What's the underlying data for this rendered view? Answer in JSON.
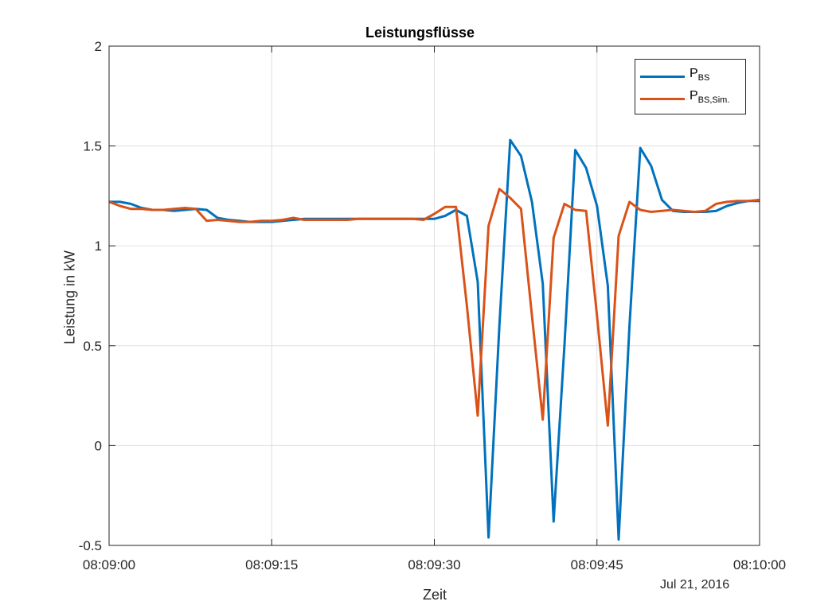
{
  "chart_data": {
    "type": "line",
    "title": "Leistungsflüsse",
    "xlabel": "Zeit",
    "ylabel": "Leistung in kW",
    "date_label": "Jul 21, 2016",
    "xlim": [
      0,
      60
    ],
    "ylim": [
      -0.5,
      2
    ],
    "xticks": [
      0,
      15,
      30,
      45,
      60
    ],
    "xtick_labels": [
      "08:09:00",
      "08:09:15",
      "08:09:30",
      "08:09:45",
      "08:10:00"
    ],
    "yticks": [
      -0.5,
      0,
      0.5,
      1,
      1.5,
      2
    ],
    "ytick_labels": [
      "-0.5",
      "0",
      "0.5",
      "1",
      "1.5",
      "2"
    ],
    "grid": true,
    "legend_position": "top-right",
    "series": [
      {
        "name": "P_BS",
        "legend_main": "P",
        "legend_sub": "BS",
        "color": "#0072BD",
        "x": [
          0,
          1,
          2,
          3,
          4,
          5,
          6,
          7,
          8,
          9,
          10,
          11,
          12,
          13,
          14,
          15,
          16,
          17,
          18,
          19,
          20,
          21,
          22,
          23,
          24,
          25,
          26,
          27,
          28,
          29,
          30,
          31,
          32,
          33,
          34,
          35,
          36,
          37,
          38,
          39,
          40,
          41,
          42,
          43,
          44,
          45,
          46,
          47,
          48,
          49,
          50,
          51,
          52,
          53,
          54,
          55,
          56,
          57,
          58,
          59,
          60
        ],
        "values": [
          1.22,
          1.22,
          1.21,
          1.19,
          1.18,
          1.18,
          1.175,
          1.18,
          1.185,
          1.18,
          1.14,
          1.13,
          1.125,
          1.12,
          1.12,
          1.12,
          1.125,
          1.13,
          1.135,
          1.135,
          1.135,
          1.135,
          1.135,
          1.135,
          1.135,
          1.135,
          1.135,
          1.135,
          1.135,
          1.135,
          1.135,
          1.15,
          1.18,
          1.15,
          0.82,
          -0.46,
          0.6,
          1.53,
          1.45,
          1.22,
          0.81,
          -0.38,
          0.5,
          1.48,
          1.39,
          1.2,
          0.8,
          -0.47,
          0.6,
          1.49,
          1.4,
          1.23,
          1.175,
          1.17,
          1.17,
          1.17,
          1.175,
          1.2,
          1.215,
          1.225,
          1.225
        ]
      },
      {
        "name": "P_BS,Sim.",
        "legend_main": "P",
        "legend_sub": "BS,Sim.",
        "color": "#D95319",
        "x": [
          0,
          1,
          2,
          3,
          4,
          5,
          6,
          7,
          8,
          9,
          10,
          11,
          12,
          13,
          14,
          15,
          16,
          17,
          18,
          19,
          20,
          21,
          22,
          23,
          24,
          25,
          26,
          27,
          28,
          29,
          30,
          31,
          32,
          33,
          34,
          35,
          36,
          37,
          38,
          39,
          40,
          41,
          42,
          43,
          44,
          45,
          46,
          47,
          48,
          49,
          50,
          51,
          52,
          53,
          54,
          55,
          56,
          57,
          58,
          59,
          60
        ],
        "values": [
          1.22,
          1.2,
          1.185,
          1.185,
          1.18,
          1.18,
          1.185,
          1.19,
          1.185,
          1.125,
          1.13,
          1.125,
          1.12,
          1.12,
          1.125,
          1.125,
          1.13,
          1.14,
          1.13,
          1.13,
          1.13,
          1.13,
          1.13,
          1.135,
          1.135,
          1.135,
          1.135,
          1.135,
          1.135,
          1.13,
          1.16,
          1.195,
          1.195,
          0.7,
          0.15,
          1.1,
          1.285,
          1.24,
          1.185,
          0.65,
          0.13,
          1.04,
          1.21,
          1.18,
          1.175,
          0.65,
          0.1,
          1.05,
          1.22,
          1.18,
          1.17,
          1.175,
          1.18,
          1.175,
          1.17,
          1.175,
          1.21,
          1.22,
          1.225,
          1.225,
          1.23
        ]
      }
    ]
  }
}
